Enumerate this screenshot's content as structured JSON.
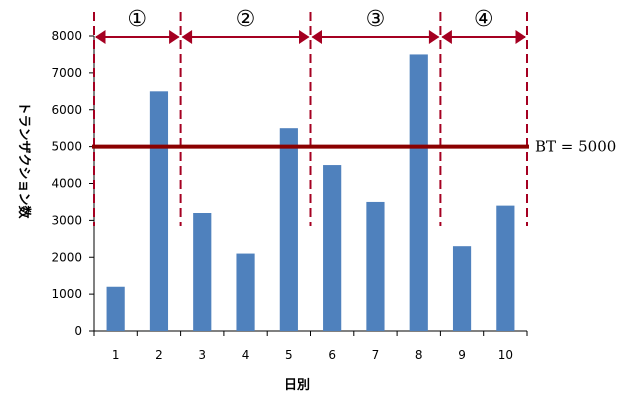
{
  "chart_data": {
    "type": "bar",
    "categories": [
      "1",
      "2",
      "3",
      "4",
      "5",
      "6",
      "7",
      "8",
      "9",
      "10"
    ],
    "values": [
      1200,
      6500,
      3200,
      2100,
      5500,
      4500,
      3500,
      7500,
      2300,
      3400
    ],
    "ylim": [
      0,
      8000
    ],
    "yticks": [
      0,
      1000,
      2000,
      3000,
      4000,
      5000,
      6000,
      7000,
      8000
    ],
    "xlabel": "日別",
    "ylabel": "トランザクション数",
    "bar_color": "#4f81bd",
    "threshold": {
      "value": 5000,
      "label": "BT = 5000",
      "color": "#8b0000"
    },
    "segments": [
      {
        "label": "①",
        "from": "1",
        "to": "2"
      },
      {
        "label": "②",
        "from": "2",
        "to": "5"
      },
      {
        "label": "③",
        "from": "5",
        "to": "8"
      },
      {
        "label": "④",
        "from": "8",
        "to": "10"
      }
    ],
    "segment_color": "#a50021",
    "grid": false,
    "legend": "none"
  }
}
